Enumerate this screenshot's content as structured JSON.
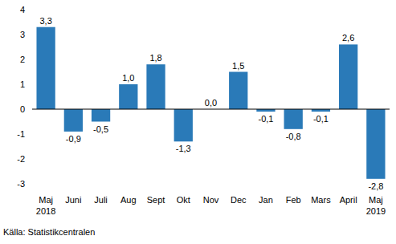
{
  "chart_data": {
    "type": "bar",
    "categories": [
      "Maj 2018",
      "Juni",
      "Juli",
      "Aug",
      "Sept",
      "Okt",
      "Nov",
      "Dec",
      "Jan",
      "Feb",
      "Mars",
      "April",
      "Maj 2019"
    ],
    "values": [
      3.3,
      -0.9,
      -0.5,
      1.0,
      1.8,
      -1.3,
      0.0,
      1.5,
      -0.1,
      -0.8,
      -0.1,
      2.6,
      -2.8
    ],
    "value_labels": [
      "3,3",
      "-0,9",
      "-0,5",
      "1,0",
      "1,8",
      "-1,3",
      "0,0",
      "1,5",
      "-0,1",
      "-0,8",
      "-0,1",
      "2,6",
      "-2,8"
    ],
    "color": "#2a7ab8",
    "ylim": [
      -3,
      4
    ],
    "yticks": [
      -3,
      -2,
      -1,
      0,
      1,
      2,
      3,
      4
    ],
    "grid": false,
    "data_labels": true,
    "source": "Källa: Statistikcentralen"
  }
}
